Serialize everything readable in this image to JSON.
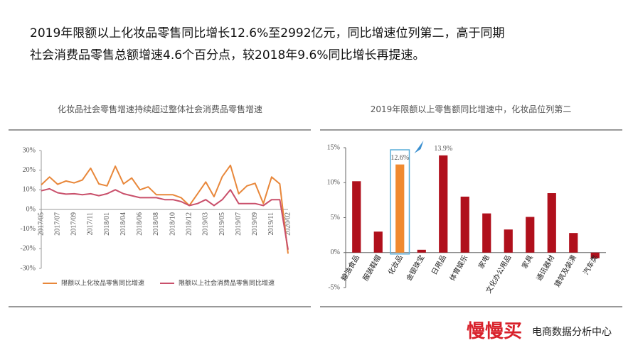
{
  "headline": [
    "2019年限额以上化妆品零售同比增长12.6%至2992亿元，同比增速位列第二，高于同期",
    "社会消费品零售总额增速4.6个百分点，较2018年9.6%同比增长再提速。"
  ],
  "chart_data": [
    {
      "type": "line",
      "title": "化妆品社会零售增速持续超过整体社会消费品零售增速",
      "categories": [
        "2017/05",
        null,
        "2017/07",
        null,
        "2017/09",
        null,
        "2017/11",
        null,
        "2018/01",
        null,
        "2018/04",
        null,
        "2018/06",
        null,
        "2018/08",
        null,
        "2018/10",
        null,
        "2018/12",
        null,
        "2019/03",
        null,
        "2019/05",
        null,
        "2019/07",
        null,
        "2019/09",
        null,
        "2019/11",
        null,
        "2020/02"
      ],
      "series": [
        {
          "name": "限额以上化妆品零售同比增速",
          "color": "#e8873a",
          "values": [
            12.5,
            16.5,
            12.8,
            14.5,
            13.5,
            15,
            21,
            13,
            12,
            22,
            13,
            16,
            10,
            11.5,
            7.5,
            7.5,
            7.5,
            6,
            2,
            8,
            14,
            6.5,
            16.7,
            22.5,
            8,
            12,
            13.3,
            3,
            16.5,
            13,
            -22.5
          ]
        },
        {
          "name": "限额以上社会消费品零售同比增速",
          "color": "#c9506b",
          "values": [
            9.5,
            10.5,
            8.5,
            7.8,
            8,
            7.5,
            8,
            7,
            8,
            10,
            8,
            7,
            6,
            6,
            6,
            5,
            5,
            4,
            2,
            3,
            5,
            2,
            5,
            10,
            3,
            3,
            3,
            2,
            5,
            5,
            -20.5
          ]
        }
      ],
      "ylim": [
        -30,
        30
      ],
      "yticks": [
        {
          "value": -30,
          "label": "-30%"
        },
        {
          "value": -20,
          "label": "-20%"
        },
        {
          "value": -10,
          "label": "-10%"
        },
        {
          "value": 0,
          "label": "0%"
        },
        {
          "value": 10,
          "label": "10%"
        },
        {
          "value": 20,
          "label": "20%"
        },
        {
          "value": 30,
          "label": "30%"
        }
      ],
      "legend": "bottom"
    },
    {
      "type": "bar",
      "title": "2019年限额以上零售额同比增速中，化妆品位列第二",
      "categories": [
        "粮油食品",
        "服装鞋帽",
        "化妆品",
        "金银珠宝",
        "日用品",
        "体育娱乐",
        "家电",
        "文化办公用品",
        "家具",
        "通讯器材",
        "建筑及装潢",
        "汽车类"
      ],
      "values": [
        10.2,
        3.0,
        12.6,
        0.4,
        13.9,
        8.0,
        5.6,
        3.3,
        5.1,
        8.5,
        2.8,
        -0.8
      ],
      "value_labels": [
        null,
        null,
        "12.6%",
        null,
        "13.9%",
        null,
        null,
        null,
        null,
        null,
        null,
        null
      ],
      "colors": [
        "#b0101c",
        "#b0101c",
        "#f08a30",
        "#b0101c",
        "#b0101c",
        "#b0101c",
        "#b0101c",
        "#b0101c",
        "#b0101c",
        "#b0101c",
        "#b0101c",
        "#b0101c"
      ],
      "ylim": [
        -5,
        15
      ],
      "yticks": [
        {
          "value": -5,
          "label": "-5%"
        },
        {
          "value": 0,
          "label": "0%"
        },
        {
          "value": 5,
          "label": "5%"
        },
        {
          "value": 10,
          "label": "10%"
        },
        {
          "value": 15,
          "label": "15%"
        }
      ]
    }
  ],
  "footer": {
    "logo": "慢慢买",
    "text": "电商数据分析中心"
  }
}
